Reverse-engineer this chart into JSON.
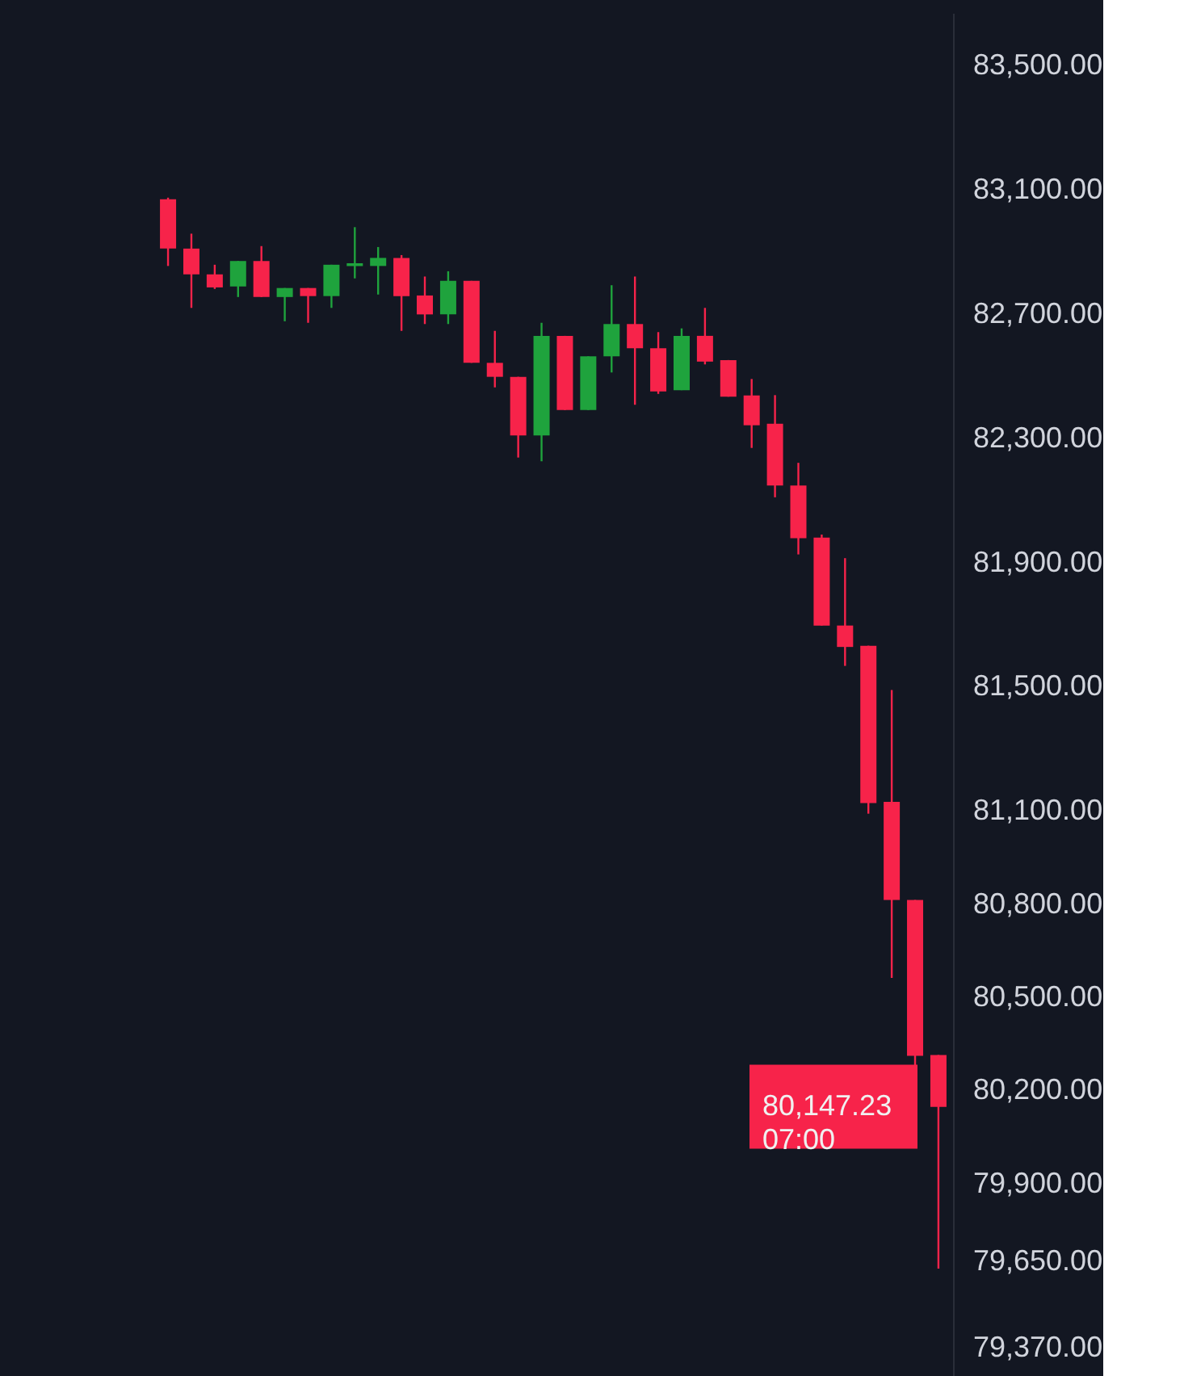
{
  "chart_data": {
    "type": "candlestick",
    "categories": [
      null,
      null,
      null,
      null,
      null,
      null,
      null,
      null,
      null,
      null,
      null,
      null,
      null,
      null,
      null,
      null,
      null,
      null,
      null,
      null,
      null,
      null,
      null,
      null,
      null,
      null,
      null,
      null,
      null,
      null,
      null,
      null,
      null,
      null
    ],
    "ohlc": [
      [
        83070,
        83075,
        82855,
        82911
      ],
      [
        82911,
        82959,
        82720,
        82828
      ],
      [
        82828,
        82859,
        82781,
        82786
      ],
      [
        82789,
        82871,
        82755,
        82871
      ],
      [
        82871,
        82919,
        82755,
        82755
      ],
      [
        82755,
        82784,
        82677,
        82784
      ],
      [
        82784,
        82784,
        82672,
        82758
      ],
      [
        82758,
        82859,
        82720,
        82859
      ],
      [
        82855,
        82980,
        82815,
        82864
      ],
      [
        82855,
        82916,
        82763,
        82881
      ],
      [
        82881,
        82890,
        82646,
        82758
      ],
      [
        82760,
        82821,
        82668,
        82699
      ],
      [
        82699,
        82838,
        82668,
        82807
      ],
      [
        82807,
        82807,
        82543,
        82543
      ],
      [
        82543,
        82646,
        82464,
        82498
      ],
      [
        82498,
        82498,
        82238,
        82309
      ],
      [
        82309,
        82672,
        82226,
        82630
      ],
      [
        82630,
        82630,
        82391,
        82391
      ],
      [
        82391,
        82564,
        82391,
        82564
      ],
      [
        82564,
        82793,
        82512,
        82668
      ],
      [
        82668,
        82821,
        82408,
        82590
      ],
      [
        82590,
        82642,
        82443,
        82451
      ],
      [
        82455,
        82654,
        82455,
        82630
      ],
      [
        82630,
        82720,
        82538,
        82547
      ],
      [
        82552,
        82552,
        82434,
        82434
      ],
      [
        82438,
        82491,
        82269,
        82342
      ],
      [
        82347,
        82439,
        82110,
        82148
      ],
      [
        82148,
        82221,
        81926,
        81978
      ],
      [
        81980,
        81990,
        81697,
        81697
      ],
      [
        81697,
        81914,
        81567,
        81628
      ],
      [
        81632,
        81632,
        81091,
        81125
      ],
      [
        81129,
        81489,
        80562,
        80813
      ],
      [
        80813,
        80813,
        80120,
        80311
      ],
      [
        80314,
        80314,
        79626,
        80147
      ]
    ],
    "colors": [
      "#f7234a",
      "#f7234a",
      "#f7234a",
      "#1fa33d",
      "#f7234a",
      "#1fa33d",
      "#f7234a",
      "#1fa33d",
      "#1fa33d",
      "#1fa33d",
      "#f7234a",
      "#f7234a",
      "#1fa33d",
      "#f7234a",
      "#f7234a",
      "#f7234a",
      "#1fa33d",
      "#f7234a",
      "#1fa33d",
      "#1fa33d",
      "#f7234a",
      "#f7234a",
      "#1fa33d",
      "#f7234a",
      "#f7234a",
      "#f7234a",
      "#f7234a",
      "#f7234a",
      "#f7234a",
      "#f7234a",
      "#f7234a",
      "#f7234a",
      "#f7234a",
      "#f7234a"
    ],
    "ylim": [
      79280,
      83670
    ],
    "yticks": [
      {
        "value": 83500,
        "label": "83,500.00"
      },
      {
        "value": 83100,
        "label": "83,100.00"
      },
      {
        "value": 82700,
        "label": "82,700.00"
      },
      {
        "value": 82300,
        "label": "82,300.00"
      },
      {
        "value": 81900,
        "label": "81,900.00"
      },
      {
        "value": 81500,
        "label": "81,500.00"
      },
      {
        "value": 81100,
        "label": "81,100.00"
      },
      {
        "value": 80800,
        "label": "80,800.00"
      },
      {
        "value": 80500,
        "label": "80,500.00"
      },
      {
        "value": 80200,
        "label": "80,200.00"
      },
      {
        "value": 79900,
        "label": "79,900.00"
      },
      {
        "value": 79650,
        "label": "79,650.00"
      },
      {
        "value": 79370,
        "label": "79,370.00"
      }
    ],
    "tick_labels": "y",
    "grid": false,
    "ref_lines": [
      {
        "axis": "y",
        "value": 80147.23,
        "label": "80,147.23\n07:00",
        "color": "#f7234a"
      }
    ]
  }
}
